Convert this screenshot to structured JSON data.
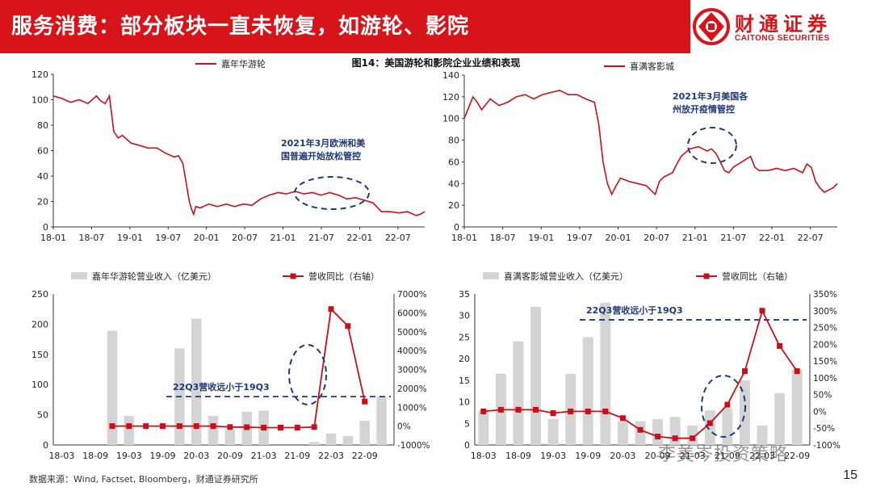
{
  "header": {
    "title": "服务消费：部分板块一直未恢复，如游轮、影院"
  },
  "logo": {
    "cn": "财通证券",
    "en": "CAITONG SECURITIES"
  },
  "figure_title": "图14：美国游轮和影院企业业绩和表现",
  "source": "数据来源：Wind, Factset, Bloomberg，财通证券研究所",
  "page_number": "15",
  "watermark": "李美岑投资策略",
  "colors": {
    "red": "#c8101a",
    "bar": "#d4d4d4",
    "navy": "#1f3a7a",
    "brand": "#d7141a"
  },
  "chart_data": [
    {
      "id": "carnival-price",
      "type": "line",
      "legend": [
        "嘉年华游轮"
      ],
      "x_ticks": [
        "18-01",
        "18-07",
        "19-01",
        "19-07",
        "20-01",
        "20-07",
        "21-01",
        "21-07",
        "22-01",
        "22-07"
      ],
      "ylim": [
        0,
        120
      ],
      "y_ticks": [
        "0",
        "20",
        "40",
        "60",
        "80",
        "100",
        "120"
      ],
      "series": [
        {
          "name": "嘉年华游轮",
          "points": [
            [
              0,
              103
            ],
            [
              2,
              101
            ],
            [
              4,
              98
            ],
            [
              6,
              100
            ],
            [
              8,
              97
            ],
            [
              10,
              103
            ],
            [
              11,
              99
            ],
            [
              12,
              97
            ],
            [
              13,
              103
            ],
            [
              14,
              75
            ],
            [
              15,
              70
            ],
            [
              16,
              72
            ],
            [
              18,
              66
            ],
            [
              20,
              64
            ],
            [
              22,
              62
            ],
            [
              24,
              62
            ],
            [
              26,
              58
            ],
            [
              28,
              55
            ],
            [
              29,
              56
            ],
            [
              30,
              50
            ],
            [
              31,
              30
            ],
            [
              31.5,
              20
            ],
            [
              32,
              14
            ],
            [
              32.5,
              10
            ],
            [
              33,
              16
            ],
            [
              34,
              15
            ],
            [
              36,
              18
            ],
            [
              38,
              16
            ],
            [
              40,
              18
            ],
            [
              42,
              16
            ],
            [
              44,
              18
            ],
            [
              46,
              17
            ],
            [
              48,
              22
            ],
            [
              50,
              25
            ],
            [
              52,
              27
            ],
            [
              54,
              26
            ],
            [
              56,
              28
            ],
            [
              58,
              26
            ],
            [
              60,
              27
            ],
            [
              62,
              25
            ],
            [
              64,
              27
            ],
            [
              66,
              25
            ],
            [
              68,
              22
            ],
            [
              70,
              23
            ],
            [
              72,
              21
            ],
            [
              74,
              19
            ],
            [
              76,
              12
            ],
            [
              78,
              12
            ],
            [
              80,
              11
            ],
            [
              82,
              12
            ],
            [
              84,
              9
            ],
            [
              85,
              10
            ],
            [
              86,
              12
            ]
          ]
        }
      ],
      "annotation": {
        "line1": "2021年3月欧洲和美",
        "line2": "国普遍开始放松管控"
      }
    },
    {
      "id": "cinemark-price",
      "type": "line",
      "legend": [
        "喜满客影城"
      ],
      "x_ticks": [
        "18-01",
        "18-07",
        "19-01",
        "19-07",
        "20-01",
        "20-07",
        "21-01",
        "21-07",
        "22-01",
        "22-07"
      ],
      "ylim": [
        0,
        140
      ],
      "y_ticks": [
        "0",
        "20",
        "40",
        "60",
        "80",
        "100",
        "120",
        "140"
      ],
      "series": [
        {
          "name": "喜满客影城",
          "points": [
            [
              0,
              100
            ],
            [
              1,
              110
            ],
            [
              2,
              120
            ],
            [
              3,
              115
            ],
            [
              4,
              108
            ],
            [
              6,
              118
            ],
            [
              8,
              112
            ],
            [
              10,
              115
            ],
            [
              12,
              120
            ],
            [
              14,
              122
            ],
            [
              16,
              118
            ],
            [
              18,
              122
            ],
            [
              20,
              124
            ],
            [
              22,
              126
            ],
            [
              24,
              122
            ],
            [
              26,
              122
            ],
            [
              28,
              118
            ],
            [
              30,
              115
            ],
            [
              31,
              95
            ],
            [
              32,
              60
            ],
            [
              33,
              40
            ],
            [
              34,
              30
            ],
            [
              35,
              38
            ],
            [
              36,
              45
            ],
            [
              38,
              42
            ],
            [
              40,
              40
            ],
            [
              42,
              38
            ],
            [
              44,
              30
            ],
            [
              45,
              42
            ],
            [
              46,
              46
            ],
            [
              48,
              50
            ],
            [
              49,
              58
            ],
            [
              50,
              65
            ],
            [
              52,
              72
            ],
            [
              54,
              74
            ],
            [
              55,
              72
            ],
            [
              56,
              70
            ],
            [
              57,
              72
            ],
            [
              58,
              68
            ],
            [
              59,
              60
            ],
            [
              60,
              52
            ],
            [
              61,
              50
            ],
            [
              62,
              55
            ],
            [
              64,
              60
            ],
            [
              66,
              65
            ],
            [
              67,
              55
            ],
            [
              68,
              52
            ],
            [
              70,
              52
            ],
            [
              72,
              54
            ],
            [
              74,
              52
            ],
            [
              76,
              54
            ],
            [
              78,
              50
            ],
            [
              79,
              58
            ],
            [
              80,
              55
            ],
            [
              81,
              42
            ],
            [
              82,
              36
            ],
            [
              83,
              32
            ],
            [
              84,
              34
            ],
            [
              85,
              36
            ],
            [
              86,
              40
            ]
          ]
        }
      ],
      "annotation": {
        "line1": "2021年3月美国各",
        "line2": "州放开疫情管控"
      }
    },
    {
      "id": "carnival-revenue",
      "type": "bar+line",
      "legend": [
        "嘉年华游轮营业收入（亿美元）",
        "营收同比（右轴）"
      ],
      "x_ticks": [
        "18-03",
        "18-09",
        "19-03",
        "19-09",
        "20-03",
        "20-09",
        "21-03",
        "21-09",
        "22-03",
        "22-09"
      ],
      "ylim_left": [
        0,
        250
      ],
      "y_ticks_left": [
        "0",
        "50",
        "100",
        "150",
        "200",
        "250"
      ],
      "ylim_right": [
        -1000,
        7000
      ],
      "y_ticks_right": [
        "-1000%",
        "0%",
        "1000%",
        "2000%",
        "3000%",
        "4000%",
        "5000%",
        "6000%",
        "7000%"
      ],
      "bars": [
        0,
        0,
        0,
        189,
        48,
        0,
        0,
        160,
        209,
        48,
        25,
        55,
        57,
        0,
        0,
        5,
        19,
        15,
        40,
        80
      ],
      "yoy_line": {
        "start_index": 3,
        "values": [
          0,
          0,
          0,
          0,
          0,
          0,
          0,
          -50,
          -60,
          -80,
          -80,
          -80,
          -50,
          6200,
          5300,
          1300
        ]
      },
      "dashed_label": "22Q3营收远小于19Q3",
      "dashed_level": 80
    },
    {
      "id": "cinemark-revenue",
      "type": "bar+line",
      "legend": [
        "喜满客影城营业收入（亿美元）",
        "营收同比（右轴）"
      ],
      "x_ticks": [
        "18-03",
        "18-09",
        "19-03",
        "19-09",
        "20-03",
        "20-09",
        "21-03",
        "21-09",
        "22-03",
        "22-09"
      ],
      "ylim_left": [
        0,
        35
      ],
      "y_ticks_left": [
        "0",
        "5",
        "10",
        "15",
        "20",
        "25",
        "30",
        "35"
      ],
      "ylim_right": [
        -100,
        350
      ],
      "y_ticks_right": [
        "-100%",
        "-50%",
        "0%",
        "50%",
        "100%",
        "150%",
        "200%",
        "250%",
        "300%",
        "350%"
      ],
      "bars": [
        8,
        16.5,
        24,
        32,
        6,
        16.5,
        25,
        33,
        5.5,
        5.5,
        6,
        6.5,
        4.5,
        8,
        8.5,
        15,
        4.5,
        12,
        17.5
      ],
      "yoy_line": {
        "start_index": 0,
        "values": [
          0,
          5,
          5,
          5,
          -5,
          0,
          0,
          0,
          -20,
          -55,
          -75,
          -80,
          -80,
          -35,
          20,
          120,
          300,
          195,
          120
        ]
      },
      "dashed_label": "22Q3营收远小于19Q3",
      "dashed_level": 29
    }
  ]
}
